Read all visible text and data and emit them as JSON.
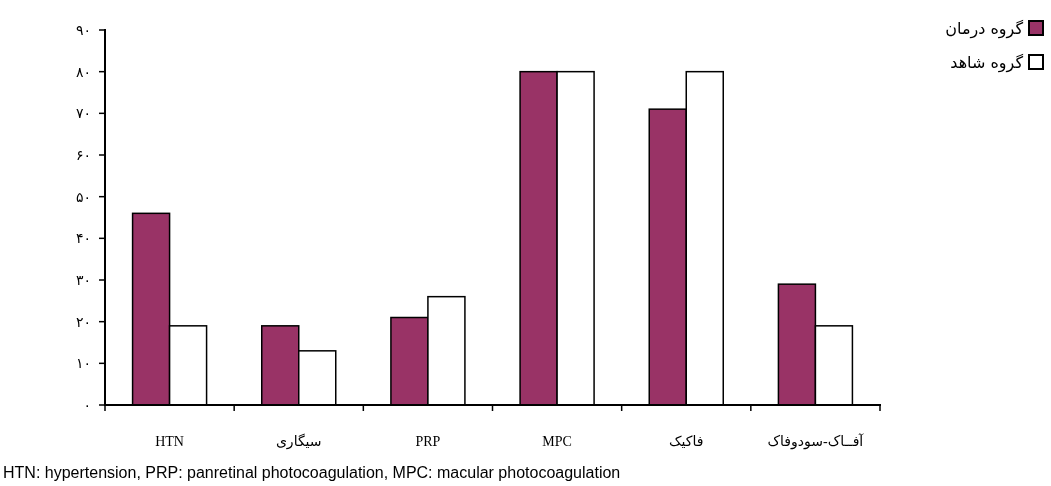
{
  "chart_data": {
    "type": "bar",
    "categories": [
      "HTN",
      "سیگاری",
      "PRP",
      "MPC",
      "فاکیک",
      "آفــاک-سودوفاک"
    ],
    "series": [
      {
        "name": "گروه  درمان",
        "color": "#993366",
        "values": [
          46,
          19,
          21,
          80,
          71,
          29
        ]
      },
      {
        "name": "گروه شاهد",
        "color": "#ffffff",
        "values": [
          19,
          13,
          26,
          80,
          80,
          19
        ]
      }
    ],
    "ylim": [
      0,
      90
    ],
    "yticks": [
      {
        "value": 0,
        "label": "۰"
      },
      {
        "value": 10,
        "label": "۱۰"
      },
      {
        "value": 20,
        "label": "۲۰"
      },
      {
        "value": 30,
        "label": "۳۰"
      },
      {
        "value": 40,
        "label": "۴۰"
      },
      {
        "value": 50,
        "label": "۵۰"
      },
      {
        "value": 60,
        "label": "۶۰"
      },
      {
        "value": 70,
        "label": "۷۰"
      },
      {
        "value": 80,
        "label": "۸۰"
      },
      {
        "value": 90,
        "label": "۹۰"
      }
    ],
    "legend": "top right",
    "grid": false,
    "annotations": [
      "HTN: hypertension, PRP: panretinal photocoagulation, MPC: macular photocoagulation"
    ]
  }
}
